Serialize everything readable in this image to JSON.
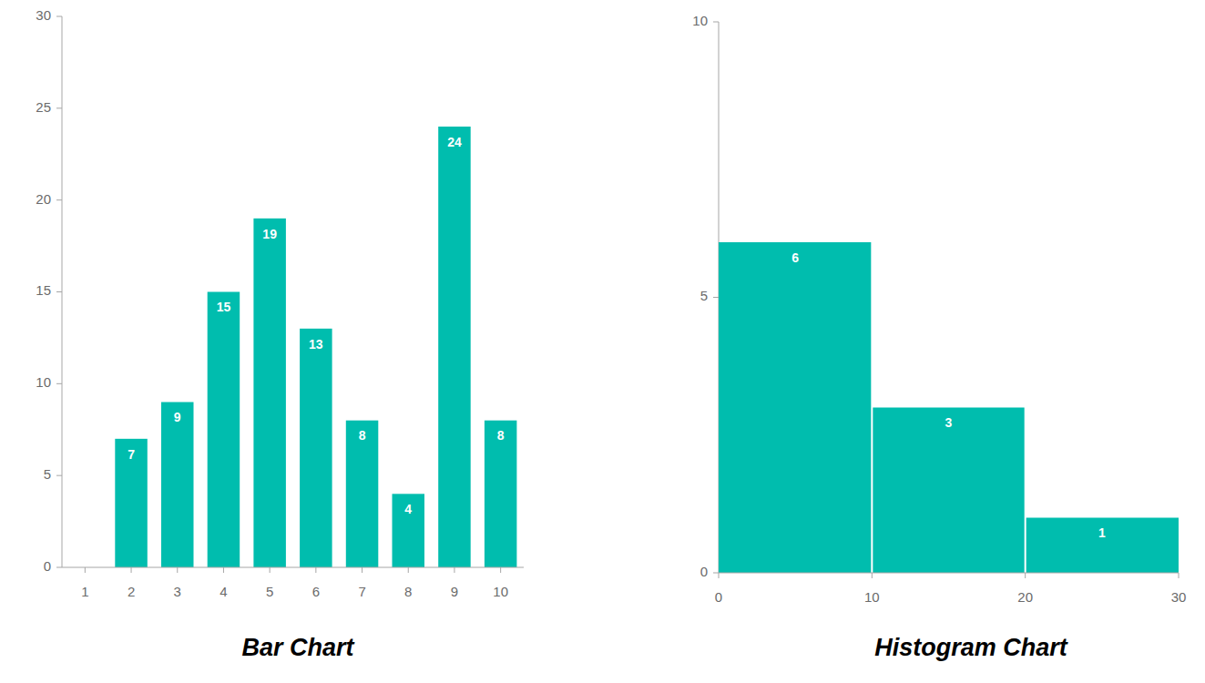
{
  "chart_data": [
    {
      "type": "bar",
      "title": "Bar Chart",
      "categories": [
        "1",
        "2",
        "3",
        "4",
        "5",
        "6",
        "7",
        "8",
        "9",
        "10"
      ],
      "values": [
        null,
        7,
        9,
        15,
        19,
        13,
        8,
        4,
        24,
        8
      ],
      "color": "#00bdae",
      "ylim": [
        0,
        30
      ],
      "yticks": [
        0,
        5,
        10,
        15,
        20,
        25,
        30
      ],
      "grid": false,
      "data_labels": true
    },
    {
      "type": "histogram",
      "title": "Histogram Chart",
      "bins": [
        0,
        10,
        20,
        30
      ],
      "values": [
        6,
        3,
        1
      ],
      "color": "#00bdae",
      "xlim": [
        0,
        30
      ],
      "xticks": [
        0,
        10,
        20,
        30
      ],
      "ylim": [
        0,
        10
      ],
      "yticks": [
        0,
        5,
        10
      ],
      "grid": false,
      "data_labels": true
    }
  ]
}
